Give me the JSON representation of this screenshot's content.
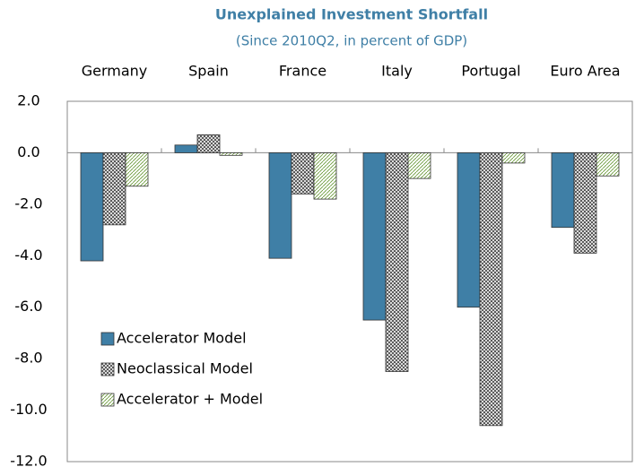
{
  "chart_data": {
    "type": "bar",
    "title": "Unexplained Investment Shortfall",
    "subtitle": "(Since 2010Q2, in percent of GDP)",
    "categories": [
      "Germany",
      "Spain",
      "France",
      "Italy",
      "Portugal",
      "Euro Area"
    ],
    "series": [
      {
        "name": "Accelerator Model",
        "color": "#3f7fa6",
        "fill": "solid",
        "values": [
          -4.2,
          0.3,
          -4.1,
          -6.5,
          -6.0,
          -2.9
        ]
      },
      {
        "name": "Neoclassical Model",
        "color": "#444444",
        "fill": "crosshatch",
        "values": [
          -2.8,
          0.7,
          -1.6,
          -8.5,
          -10.6,
          -3.9
        ]
      },
      {
        "name": "Accelerator + Model",
        "color": "#6a9a3a",
        "fill": "hatch",
        "values": [
          -1.3,
          -0.1,
          -1.8,
          -1.0,
          -0.4,
          -0.9
        ]
      }
    ],
    "ylim": [
      -12,
      2
    ],
    "yticks": [
      {
        "value": 2,
        "label": "2.0"
      },
      {
        "value": 0,
        "label": "0.0"
      },
      {
        "value": -2,
        "label": "-2.0"
      },
      {
        "value": -4,
        "label": "-4.0"
      },
      {
        "value": -6,
        "label": "-6.0"
      },
      {
        "value": -8,
        "label": "-8.0"
      },
      {
        "value": -10,
        "label": "-10.0"
      },
      {
        "value": -12,
        "label": "-12.0"
      }
    ],
    "legend": "lower left",
    "grid": false
  }
}
